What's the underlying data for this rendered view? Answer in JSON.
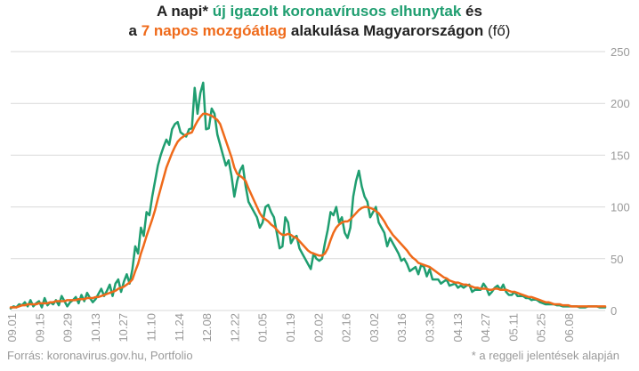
{
  "title": {
    "p1": "A napi* ",
    "p2": "új igazolt koronavírusos elhunytak",
    "p3": " és",
    "p4": "a ",
    "p5": "7 napos mozgóátlag",
    "p6": " alakulása Magyarországon",
    "p7": " (fő)"
  },
  "footer": {
    "source": "Forrás: koronavirus.gov.hu, Portfolio",
    "note": "* a reggeli jelentések alapján"
  },
  "colors": {
    "daily": "#1f9e70",
    "avg": "#ef6a1a",
    "grid": "#d9d9d9",
    "axis_text": "#9a9a9a"
  },
  "chart_data": {
    "type": "line",
    "x_tick_labels": [
      "09.01",
      "09.15",
      "09.29",
      "10.13",
      "10.27",
      "11.10",
      "11.24",
      "12.08",
      "12.22",
      "01.05",
      "01.19",
      "02.02",
      "02.16",
      "03.02",
      "03.16",
      "03.30",
      "04.13",
      "04.27",
      "05.11",
      "05.25",
      "06.08"
    ],
    "y_ticks": [
      0,
      50,
      100,
      150,
      200,
      250
    ],
    "ylim": [
      0,
      250
    ],
    "y_axis_position": "right",
    "grid": true,
    "legend": "in-title",
    "series": [
      {
        "name": "új igazolt koronavírusos elhunytak",
        "values": [
          2,
          4,
          3,
          6,
          5,
          8,
          4,
          10,
          4,
          7,
          9,
          3,
          12,
          5,
          8,
          6,
          10,
          5,
          14,
          9,
          4,
          8,
          10,
          13,
          7,
          15,
          9,
          17,
          12,
          8,
          11,
          16,
          21,
          14,
          19,
          25,
          14,
          26,
          30,
          18,
          28,
          35,
          26,
          40,
          62,
          55,
          80,
          72,
          95,
          92,
          110,
          125,
          140,
          150,
          158,
          165,
          160,
          175,
          180,
          182,
          172,
          170,
          168,
          175,
          176,
          215,
          190,
          210,
          220,
          175,
          176,
          195,
          190,
          170,
          160,
          150,
          140,
          145,
          130,
          110,
          125,
          135,
          140,
          120,
          105,
          100,
          95,
          90,
          80,
          85,
          100,
          102,
          95,
          90,
          75,
          60,
          62,
          90,
          85,
          65,
          70,
          72,
          60,
          55,
          50,
          45,
          40,
          55,
          50,
          48,
          50,
          65,
          78,
          95,
          92,
          100,
          85,
          90,
          75,
          70,
          80,
          110,
          125,
          135,
          120,
          110,
          105,
          90,
          95,
          100,
          85,
          80,
          75,
          62,
          70,
          65,
          60,
          55,
          48,
          50,
          45,
          38,
          40,
          42,
          35,
          44,
          42,
          33,
          40,
          30,
          30,
          30,
          26,
          28,
          30,
          24,
          25,
          26,
          22,
          24,
          22,
          24,
          25,
          18,
          20,
          20,
          20,
          26,
          22,
          15,
          18,
          22,
          24,
          20,
          25,
          18,
          15,
          15,
          18,
          14,
          14,
          14,
          12,
          12,
          10,
          11,
          10,
          8,
          7,
          6,
          6,
          6,
          6,
          5,
          5,
          4,
          4,
          4,
          4,
          4,
          4,
          3,
          3,
          3,
          4,
          4,
          4,
          4,
          3,
          3,
          3
        ]
      },
      {
        "name": "7 napos mozgóátlag",
        "values": [
          3,
          3,
          3,
          4,
          5,
          5,
          6,
          6,
          6,
          6,
          7,
          7,
          7,
          7,
          8,
          8,
          9,
          9,
          9,
          9,
          10,
          10,
          10,
          10,
          11,
          11,
          11,
          12,
          12,
          12,
          13,
          13,
          14,
          15,
          16,
          17,
          18,
          19,
          21,
          22,
          23,
          25,
          27,
          30,
          38,
          45,
          55,
          63,
          72,
          80,
          88,
          97,
          108,
          118,
          128,
          138,
          145,
          152,
          158,
          163,
          166,
          168,
          170,
          171,
          172,
          178,
          183,
          187,
          190,
          190,
          189,
          188,
          186,
          184,
          180,
          172,
          164,
          156,
          148,
          138,
          132,
          130,
          128,
          125,
          118,
          112,
          106,
          100,
          94,
          90,
          88,
          86,
          83,
          81,
          78,
          75,
          73,
          73,
          74,
          73,
          71,
          70,
          67,
          64,
          61,
          58,
          56,
          55,
          54,
          53,
          53,
          55,
          60,
          68,
          75,
          80,
          83,
          85,
          86,
          86,
          88,
          91,
          94,
          97,
          99,
          100,
          100,
          99,
          98,
          96,
          94,
          90,
          86,
          81,
          77,
          73,
          70,
          67,
          64,
          61,
          58,
          54,
          51,
          49,
          46,
          45,
          44,
          43,
          42,
          40,
          38,
          36,
          34,
          32,
          31,
          29,
          28,
          27,
          27,
          26,
          25,
          25,
          24,
          23,
          22,
          22,
          21,
          21,
          21,
          20,
          20,
          21,
          21,
          20,
          20,
          20,
          19,
          18,
          18,
          17,
          16,
          15,
          14,
          13,
          13,
          12,
          11,
          10,
          9,
          8,
          8,
          7,
          6,
          6,
          6,
          5,
          5,
          5,
          4,
          4,
          4,
          4,
          4,
          4,
          4,
          4,
          4,
          4,
          4,
          4,
          4
        ]
      }
    ]
  }
}
